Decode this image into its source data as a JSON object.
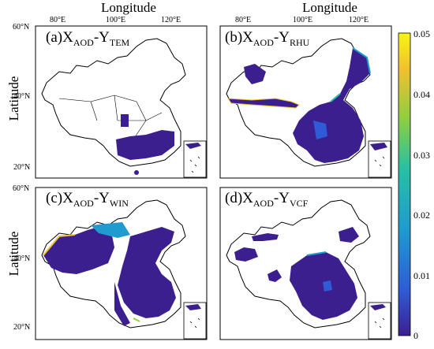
{
  "figure": {
    "x_axis_title": "Longitude",
    "y_axis_title": "Latitude",
    "lon_ticks": [
      "80°E",
      "100°E",
      "120°E"
    ],
    "lat_ticks": [
      "60°N",
      "40°N",
      "20°N"
    ]
  },
  "panels": [
    {
      "id": "a",
      "prefix": "(a)X",
      "sub1": "AOD",
      "mid": "-Y",
      "sub2": "TEM"
    },
    {
      "id": "b",
      "prefix": "(b)X",
      "sub1": "AOD",
      "mid": "-Y",
      "sub2": "RHU"
    },
    {
      "id": "c",
      "prefix": "(c)X",
      "sub1": "AOD",
      "mid": "-Y",
      "sub2": "WIN"
    },
    {
      "id": "d",
      "prefix": "(d)X",
      "sub1": "AOD",
      "mid": "-Y",
      "sub2": "VCF"
    }
  ],
  "colorbar": {
    "ticks": [
      "0.05",
      "0.04",
      "0.03",
      "0.02",
      "0.01",
      "0"
    ],
    "range": [
      0,
      0.05
    ],
    "colors": [
      "#3b1f8f",
      "#2f5bd6",
      "#1f9bcf",
      "#26c0a4",
      "#8fcf3f",
      "#f0c030",
      "#f8f512"
    ]
  }
}
